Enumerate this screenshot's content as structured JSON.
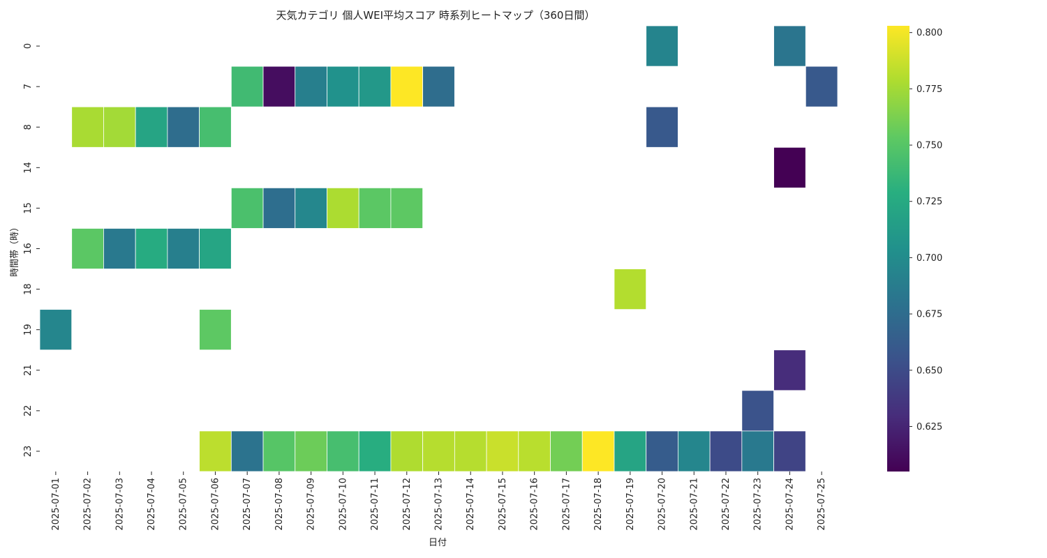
{
  "chart_data": {
    "type": "heatmap",
    "title": "天気カテゴリ 個人WEI平均スコア 時系列ヒートマップ（360日間）",
    "xlabel": "日付",
    "ylabel": "時間帯（時）",
    "colormap": "viridis",
    "x": [
      "2025-07-01",
      "2025-07-02",
      "2025-07-03",
      "2025-07-04",
      "2025-07-05",
      "2025-07-06",
      "2025-07-07",
      "2025-07-08",
      "2025-07-09",
      "2025-07-10",
      "2025-07-11",
      "2025-07-12",
      "2025-07-13",
      "2025-07-14",
      "2025-07-15",
      "2025-07-16",
      "2025-07-17",
      "2025-07-18",
      "2025-07-19",
      "2025-07-20",
      "2025-07-21",
      "2025-07-22",
      "2025-07-23",
      "2025-07-24",
      "2025-07-25"
    ],
    "y": [
      "0",
      "7",
      "8",
      "14",
      "15",
      "16",
      "18",
      "19",
      "21",
      "22",
      "23"
    ],
    "values": [
      [
        null,
        null,
        null,
        null,
        null,
        null,
        null,
        null,
        null,
        null,
        null,
        null,
        null,
        null,
        null,
        null,
        null,
        null,
        null,
        0.694,
        null,
        null,
        null,
        0.682,
        null
      ],
      [
        null,
        null,
        null,
        null,
        null,
        null,
        0.74,
        0.612,
        0.69,
        0.705,
        0.71,
        0.803,
        0.675,
        null,
        null,
        null,
        null,
        null,
        null,
        null,
        null,
        null,
        null,
        null,
        0.66
      ],
      [
        null,
        0.777,
        0.775,
        0.72,
        0.675,
        0.743,
        null,
        null,
        null,
        null,
        null,
        null,
        null,
        null,
        null,
        null,
        null,
        null,
        null,
        0.66,
        null,
        null,
        null,
        null,
        null
      ],
      [
        null,
        null,
        null,
        null,
        null,
        null,
        null,
        null,
        null,
        null,
        null,
        null,
        null,
        null,
        null,
        null,
        null,
        null,
        null,
        null,
        null,
        null,
        null,
        0.605,
        null
      ],
      [
        null,
        null,
        null,
        null,
        null,
        null,
        0.745,
        0.676,
        0.696,
        0.778,
        0.752,
        0.753,
        null,
        null,
        null,
        null,
        null,
        null,
        null,
        null,
        null,
        null,
        null,
        null,
        null
      ],
      [
        null,
        0.752,
        0.685,
        0.726,
        0.69,
        0.721,
        null,
        null,
        null,
        null,
        null,
        null,
        null,
        null,
        null,
        null,
        null,
        null,
        null,
        null,
        null,
        null,
        null,
        null,
        null
      ],
      [
        null,
        null,
        null,
        null,
        null,
        null,
        null,
        null,
        null,
        null,
        null,
        null,
        null,
        null,
        null,
        null,
        null,
        null,
        0.78,
        null,
        null,
        null,
        null,
        null,
        null
      ],
      [
        0.695,
        null,
        null,
        null,
        null,
        0.753,
        null,
        null,
        null,
        null,
        null,
        null,
        null,
        null,
        null,
        null,
        null,
        null,
        null,
        null,
        null,
        null,
        null,
        null,
        null
      ],
      [
        null,
        null,
        null,
        null,
        null,
        null,
        null,
        null,
        null,
        null,
        null,
        null,
        null,
        null,
        null,
        null,
        null,
        null,
        null,
        null,
        null,
        null,
        null,
        0.63,
        null
      ],
      [
        null,
        null,
        null,
        null,
        null,
        null,
        null,
        null,
        null,
        null,
        null,
        null,
        null,
        null,
        null,
        null,
        null,
        null,
        null,
        null,
        null,
        null,
        0.655,
        null,
        null
      ],
      [
        null,
        null,
        null,
        null,
        null,
        0.783,
        0.68,
        0.75,
        0.758,
        0.743,
        0.728,
        0.779,
        0.781,
        0.781,
        0.787,
        0.782,
        0.76,
        0.803,
        0.72,
        0.662,
        0.695,
        0.65,
        0.685,
        0.645,
        null
      ]
    ],
    "vmin": 0.605,
    "vmax": 0.803,
    "colorbar_ticks": [
      0.625,
      0.65,
      0.675,
      0.7,
      0.725,
      0.75,
      0.775,
      0.8
    ],
    "colorbar_tick_labels": [
      "0.625",
      "0.650",
      "0.675",
      "0.700",
      "0.725",
      "0.750",
      "0.775",
      "0.800"
    ]
  }
}
